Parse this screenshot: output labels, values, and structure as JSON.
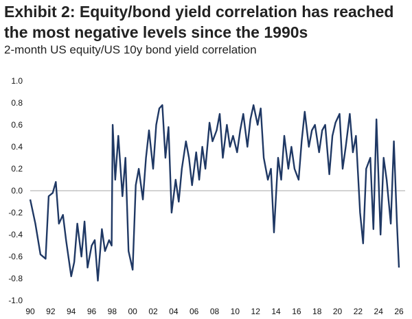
{
  "title": "Exhibit 2: Equity/bond yield correlation has reached the most negative levels since the 1990s",
  "subtitle": "2-month US equity/US 10y bond yield correlation",
  "colors": {
    "series": "#1f3864",
    "zero_line": "#a6a6a6",
    "text": "#222222"
  },
  "chart_data": {
    "type": "line",
    "title": "Exhibit 2: Equity/bond yield correlation has reached the most negative levels since the 1990s",
    "subtitle": "2-month US equity/US 10y bond yield correlation",
    "xlabel": "",
    "ylabel": "",
    "xlim": [
      1990,
      2026.6
    ],
    "ylim": [
      -1.0,
      1.0
    ],
    "x_ticks": [
      "90",
      "92",
      "94",
      "96",
      "98",
      "00",
      "02",
      "04",
      "06",
      "08",
      "10",
      "12",
      "14",
      "16",
      "18",
      "20",
      "22",
      "24",
      "26"
    ],
    "y_ticks": [
      "1.0",
      "0.8",
      "0.6",
      "0.4",
      "0.2",
      "0.0",
      "-0.2",
      "-0.4",
      "-0.6",
      "-0.8",
      "-1.0"
    ],
    "grid": false,
    "legend": "none",
    "series": [
      {
        "x": [
          1990.0,
          1990.5,
          1991.0,
          1991.5,
          1991.8,
          1992.2,
          1992.5,
          1992.8,
          1993.2,
          1993.5,
          1994.0,
          1994.3,
          1994.6,
          1995.0,
          1995.3,
          1995.6,
          1996.0,
          1996.3,
          1996.6,
          1997.0,
          1997.3,
          1997.7,
          1997.95,
          1998.05,
          1998.3,
          1998.6,
          1999.0,
          1999.3,
          1999.6,
          2000.0,
          2000.3,
          2000.6,
          2001.0,
          2001.3,
          2001.6,
          2002.0,
          2002.3,
          2002.6,
          2002.9,
          2003.2,
          2003.5,
          2003.8,
          2004.2,
          2004.5,
          2004.8,
          2005.2,
          2005.5,
          2005.8,
          2006.2,
          2006.5,
          2006.8,
          2007.1,
          2007.5,
          2007.8,
          2008.2,
          2008.5,
          2008.8,
          2009.2,
          2009.5,
          2009.8,
          2010.2,
          2010.5,
          2010.8,
          2011.2,
          2011.5,
          2011.8,
          2012.2,
          2012.5,
          2012.8,
          2013.2,
          2013.5,
          2013.8,
          2014.2,
          2014.5,
          2014.8,
          2015.2,
          2015.5,
          2015.8,
          2016.2,
          2016.5,
          2016.8,
          2017.2,
          2017.5,
          2017.8,
          2018.2,
          2018.5,
          2018.8,
          2019.2,
          2019.5,
          2019.8,
          2020.2,
          2020.5,
          2020.8,
          2021.2,
          2021.5,
          2021.8,
          2022.2,
          2022.5,
          2022.8,
          2023.2,
          2023.5,
          2023.8,
          2024.2,
          2024.5,
          2024.8,
          2025.2,
          2025.5,
          2025.8,
          2026.0
        ],
        "values": [
          -0.08,
          -0.3,
          -0.58,
          -0.62,
          -0.05,
          -0.02,
          0.08,
          -0.3,
          -0.22,
          -0.45,
          -0.78,
          -0.65,
          -0.3,
          -0.6,
          -0.28,
          -0.7,
          -0.5,
          -0.45,
          -0.82,
          -0.35,
          -0.55,
          -0.45,
          -0.5,
          0.6,
          0.1,
          0.5,
          -0.05,
          0.3,
          -0.55,
          -0.72,
          0.05,
          0.2,
          -0.08,
          0.3,
          0.55,
          0.2,
          0.6,
          0.75,
          0.78,
          0.3,
          0.58,
          -0.2,
          0.1,
          -0.1,
          0.2,
          0.45,
          0.3,
          0.05,
          0.35,
          0.1,
          0.4,
          0.2,
          0.62,
          0.45,
          0.55,
          0.7,
          0.3,
          0.6,
          0.4,
          0.5,
          0.35,
          0.55,
          0.7,
          0.4,
          0.65,
          0.78,
          0.6,
          0.75,
          0.3,
          0.1,
          0.2,
          -0.38,
          0.3,
          0.1,
          0.5,
          0.2,
          0.4,
          0.2,
          0.1,
          0.45,
          0.72,
          0.4,
          0.55,
          0.6,
          0.35,
          0.55,
          0.6,
          0.15,
          0.5,
          0.62,
          0.7,
          0.2,
          0.4,
          0.7,
          0.35,
          0.5,
          -0.2,
          -0.48,
          0.2,
          0.3,
          -0.35,
          0.65,
          -0.4,
          0.3,
          0.1,
          -0.3,
          0.45,
          -0.3,
          -0.7
        ]
      }
    ]
  }
}
